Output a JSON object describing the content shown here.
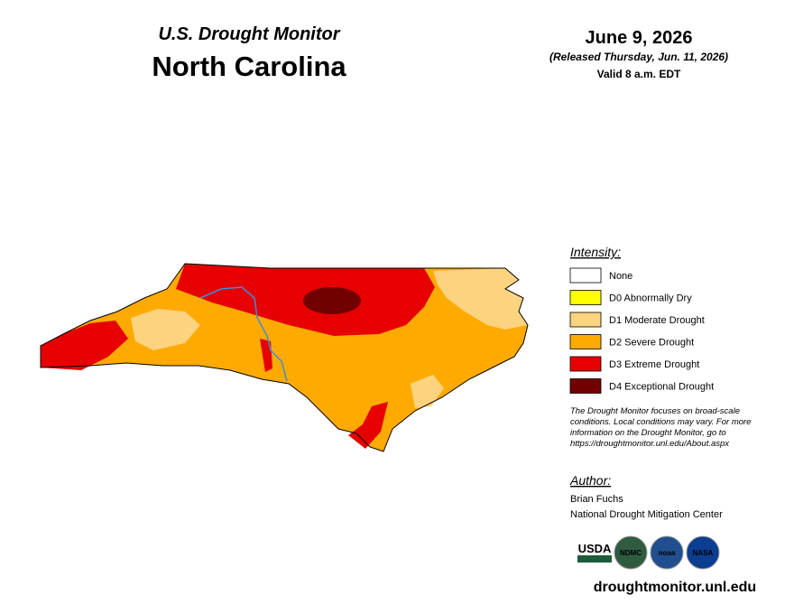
{
  "header": {
    "title": "U.S. Drought Monitor",
    "state": "North Carolina",
    "date": "June 9, 2026",
    "released": "(Released Thursday, Jun. 11, 2026)",
    "valid": "Valid 8 a.m. EDT"
  },
  "legend": {
    "title": "Intensity:",
    "items": [
      {
        "label": "None",
        "color": "#ffffff"
      },
      {
        "label": "D0 Abnormally Dry",
        "color": "#ffff00"
      },
      {
        "label": "D1 Moderate Drought",
        "color": "#fcd37f"
      },
      {
        "label": "D2 Severe Drought",
        "color": "#ffaa00"
      },
      {
        "label": "D3 Extreme Drought",
        "color": "#e60000"
      },
      {
        "label": "D4 Exceptional Drought",
        "color": "#730000"
      }
    ]
  },
  "note": [
    "The Drought Monitor focuses on broad-scale",
    "conditions. Local conditions may vary. For more",
    "information on the Drought Monitor, go to",
    "https://droughtmonitor.unl.edu/About.aspx"
  ],
  "author": {
    "title": "Author:",
    "name": "Brian Fuchs",
    "org": "National Drought Mitigation Center"
  },
  "logos": [
    "USDA",
    "NDMC",
    "noaa",
    "NASA"
  ],
  "url": "droughtmonitor.unl.edu"
}
